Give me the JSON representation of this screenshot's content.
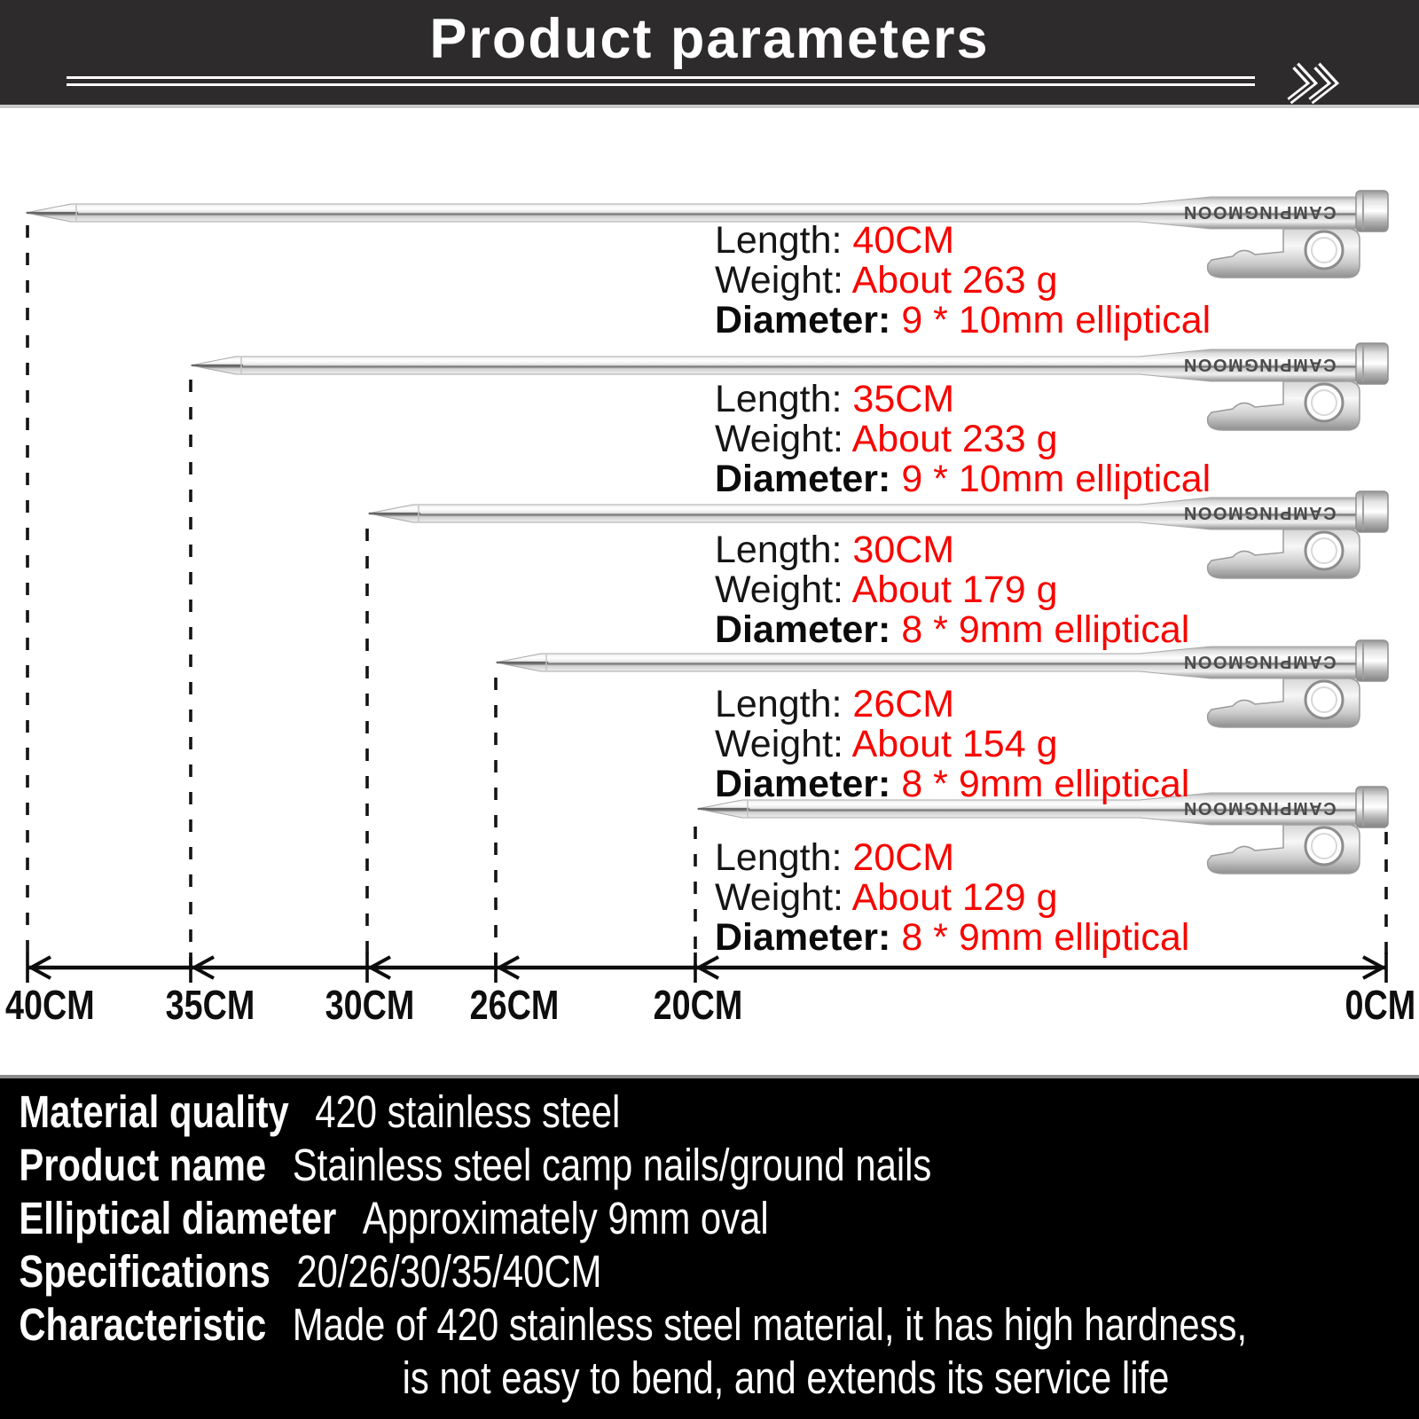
{
  "header": {
    "title": "Product parameters",
    "chevron_icon": "double-chevron-right"
  },
  "colors": {
    "accent_red": "#f70500",
    "header_bg": "#2d2b2c",
    "panel_bg": "#000000"
  },
  "labels": {
    "length": "Length:",
    "weight": "Weight:",
    "diameter": "Diameter:"
  },
  "stakes": [
    {
      "brand": "CAMPINGMOON",
      "length_value": "40CM",
      "weight_value": "About 263 g",
      "diameter_value": "9 * 10mm elliptical"
    },
    {
      "brand": "CAMPINGMOON",
      "length_value": "35CM",
      "weight_value": "About 233 g",
      "diameter_value": "9 * 10mm elliptical"
    },
    {
      "brand": "CAMPINGMOON",
      "length_value": "30CM",
      "weight_value": "About 179 g",
      "diameter_value": "8 * 9mm elliptical"
    },
    {
      "brand": "CAMPINGMOON",
      "length_value": "26CM",
      "weight_value": "About 154 g",
      "diameter_value": "8 * 9mm elliptical"
    },
    {
      "brand": "CAMPINGMOON",
      "length_value": "20CM",
      "weight_value": "About 129 g",
      "diameter_value": "8 * 9mm elliptical"
    }
  ],
  "scale": {
    "labels": [
      "40CM",
      "35CM",
      "30CM",
      "26CM",
      "20CM",
      "0CM"
    ]
  },
  "details": {
    "rows": [
      {
        "label": "Material quality",
        "value": "420 stainless steel"
      },
      {
        "label": "Product name",
        "value": "Stainless steel camp nails/ground nails"
      },
      {
        "label": "Elliptical diameter",
        "value": "Approximately 9mm oval"
      },
      {
        "label": "Specifications",
        "value": "20/26/30/35/40CM"
      },
      {
        "label": "Characteristic",
        "value": "Made of 420 stainless steel material, it has high hardness,"
      }
    ],
    "continuation": "is not easy to bend, and extends its service life"
  }
}
